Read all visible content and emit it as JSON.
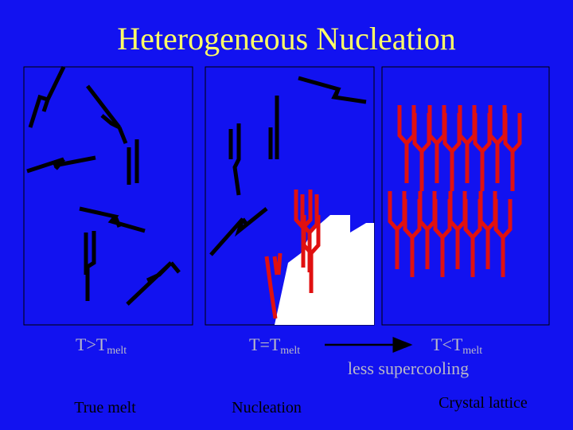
{
  "title": "Heterogeneous Nucleation",
  "panels": [
    {
      "condition": {
        "main": "T>T",
        "sub": "melt"
      },
      "caption": "True melt"
    },
    {
      "condition": {
        "main": "T=T",
        "sub": "melt"
      },
      "caption": "Nucleation"
    },
    {
      "condition": {
        "main": "T<T",
        "sub": "melt"
      },
      "caption": "Crystal lattice"
    }
  ],
  "arrow_label": "less supercooling"
}
